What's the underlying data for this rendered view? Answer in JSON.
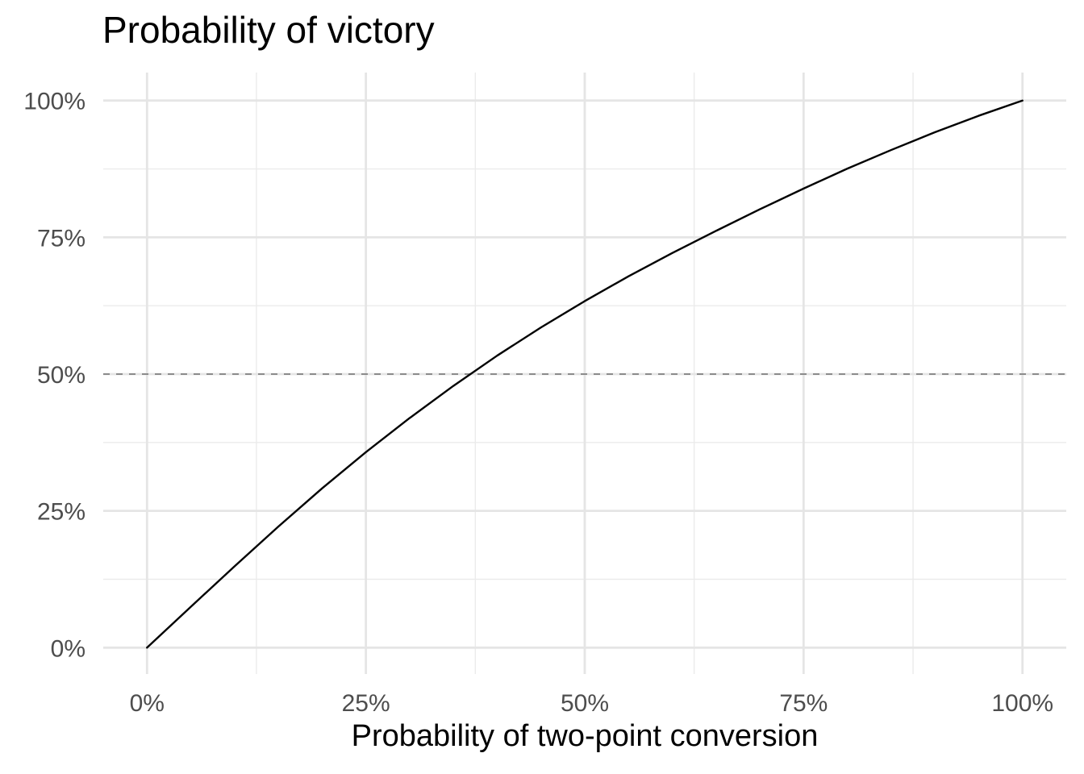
{
  "chart_data": {
    "type": "line",
    "title": "Probability of victory",
    "xlabel": "Probability of two-point conversion",
    "ylabel": "",
    "xlim": [
      0,
      1
    ],
    "ylim": [
      0,
      1
    ],
    "x_ticks": [
      0,
      0.25,
      0.5,
      0.75,
      1
    ],
    "x_tick_labels": [
      "0%",
      "25%",
      "50%",
      "75%",
      "100%"
    ],
    "y_ticks": [
      0,
      0.25,
      0.5,
      0.75,
      1
    ],
    "y_tick_labels": [
      "0%",
      "25%",
      "50%",
      "75%",
      "100%"
    ],
    "grid": true,
    "legend": "none",
    "reference_line": {
      "y": 0.5,
      "style": "dashed",
      "color": "#8c8c8c"
    },
    "series": [
      {
        "color": "#000000",
        "x": [
          0,
          0.05,
          0.1,
          0.15,
          0.2,
          0.25,
          0.3,
          0.35,
          0.4,
          0.45,
          0.5,
          0.55,
          0.6,
          0.65,
          0.7,
          0.75,
          0.8,
          0.85,
          0.9,
          0.95,
          1
        ],
        "y": [
          0,
          0.0747,
          0.1488,
          0.2213,
          0.2912,
          0.3574,
          0.4197,
          0.4785,
          0.5338,
          0.5853,
          0.6334,
          0.6788,
          0.7213,
          0.7618,
          0.8012,
          0.8391,
          0.8756,
          0.9096,
          0.9421,
          0.9722,
          1
        ]
      }
    ]
  }
}
